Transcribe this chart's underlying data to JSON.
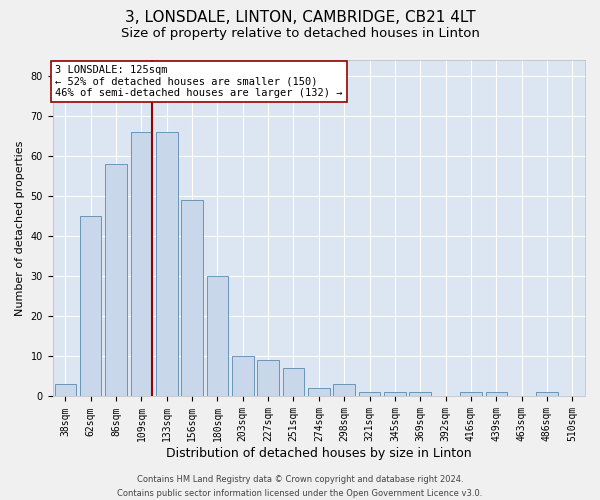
{
  "title": "3, LONSDALE, LINTON, CAMBRIDGE, CB21 4LT",
  "subtitle": "Size of property relative to detached houses in Linton",
  "xlabel": "Distribution of detached houses by size in Linton",
  "ylabel": "Number of detached properties",
  "categories": [
    "38sqm",
    "62sqm",
    "86sqm",
    "109sqm",
    "133sqm",
    "156sqm",
    "180sqm",
    "203sqm",
    "227sqm",
    "251sqm",
    "274sqm",
    "298sqm",
    "321sqm",
    "345sqm",
    "369sqm",
    "392sqm",
    "416sqm",
    "439sqm",
    "463sqm",
    "486sqm",
    "510sqm"
  ],
  "values": [
    3,
    45,
    58,
    66,
    66,
    49,
    30,
    10,
    9,
    7,
    2,
    3,
    1,
    1,
    1,
    0,
    1,
    1,
    0,
    1,
    0
  ],
  "bar_color": "#c8d8ea",
  "bar_edge_color": "#5a8ab0",
  "vline_color": "#990000",
  "vline_x_index": 3.43,
  "annotation_text": "3 LONSDALE: 125sqm\n← 52% of detached houses are smaller (150)\n46% of semi-detached houses are larger (132) →",
  "annotation_box_facecolor": "#ffffff",
  "annotation_box_edgecolor": "#990000",
  "ylim": [
    0,
    84
  ],
  "yticks": [
    0,
    10,
    20,
    30,
    40,
    50,
    60,
    70,
    80
  ],
  "bg_color": "#dce6f2",
  "grid_color": "#ffffff",
  "fig_bg_color": "#f0f0f0",
  "title_fontsize": 11,
  "subtitle_fontsize": 9.5,
  "xlabel_fontsize": 9,
  "ylabel_fontsize": 8,
  "tick_fontsize": 7,
  "annot_fontsize": 7.5,
  "footer_fontsize": 6,
  "footer": "Contains HM Land Registry data © Crown copyright and database right 2024.\nContains public sector information licensed under the Open Government Licence v3.0."
}
